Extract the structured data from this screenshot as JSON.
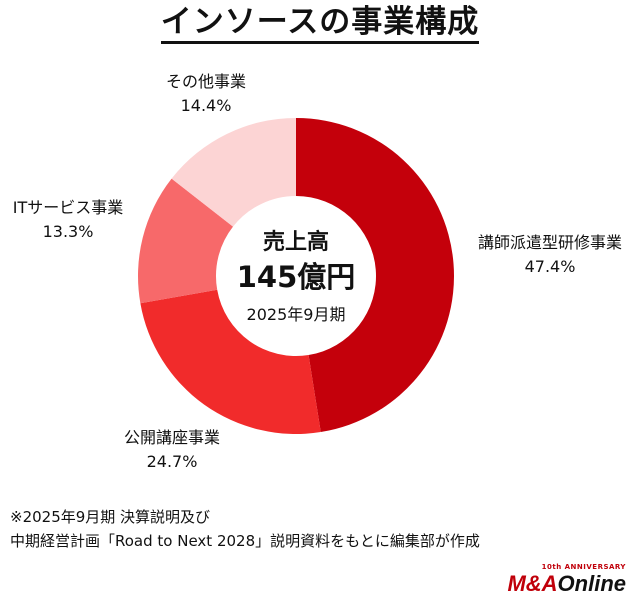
{
  "title": "インソースの事業構成",
  "center": {
    "line1": "売上高",
    "line2": "145億円",
    "line3": "2025年9月期"
  },
  "chart_data": {
    "type": "pie",
    "donut": true,
    "start_angle_deg": 0,
    "direction": "clockwise",
    "slices": [
      {
        "label": "講師派遣型研修事業",
        "value": 47.4,
        "display": "47.4%",
        "color": "#c4000b"
      },
      {
        "label": "公開講座事業",
        "value": 24.7,
        "display": "24.7%",
        "color": "#f12b2b"
      },
      {
        "label": "ITサービス事業",
        "value": 13.3,
        "display": "13.3%",
        "color": "#f7696a"
      },
      {
        "label": "その他事業",
        "value": 14.4,
        "display": "14.4%",
        "color": "#fcd4d4"
      }
    ]
  },
  "notes": {
    "line1": "※2025年9月期 決算説明及び",
    "line2": "中期経営計画「Road to Next 2028」説明資料をもとに編集部が作成"
  },
  "logo": {
    "sub": "10th ANNIVERSARY",
    "ma": "M&A",
    "online": "Online"
  }
}
